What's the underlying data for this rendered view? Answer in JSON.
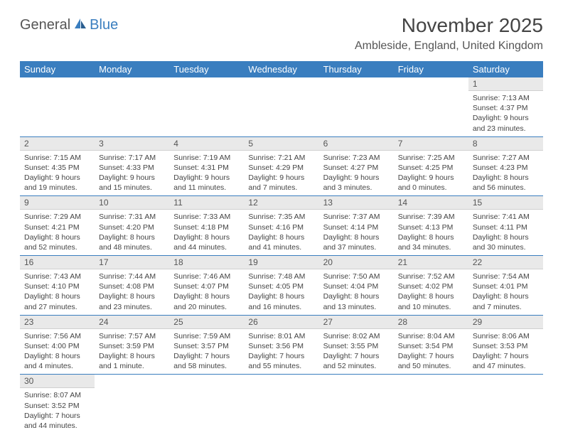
{
  "logo": {
    "part1": "General",
    "part2": "Blue"
  },
  "title": "November 2025",
  "location": "Ambleside, England, United Kingdom",
  "colors": {
    "header_bg": "#3a7ebf",
    "header_fg": "#ffffff",
    "daynum_bg": "#e9e9e9",
    "row_border": "#3a7ebf",
    "text": "#444444",
    "logo_gray": "#555555",
    "logo_blue": "#3a7ebf"
  },
  "weekdays": [
    "Sunday",
    "Monday",
    "Tuesday",
    "Wednesday",
    "Thursday",
    "Friday",
    "Saturday"
  ],
  "weeks": [
    [
      {
        "n": "",
        "lines": []
      },
      {
        "n": "",
        "lines": []
      },
      {
        "n": "",
        "lines": []
      },
      {
        "n": "",
        "lines": []
      },
      {
        "n": "",
        "lines": []
      },
      {
        "n": "",
        "lines": []
      },
      {
        "n": "1",
        "lines": [
          "Sunrise: 7:13 AM",
          "Sunset: 4:37 PM",
          "Daylight: 9 hours and 23 minutes."
        ]
      }
    ],
    [
      {
        "n": "2",
        "lines": [
          "Sunrise: 7:15 AM",
          "Sunset: 4:35 PM",
          "Daylight: 9 hours and 19 minutes."
        ]
      },
      {
        "n": "3",
        "lines": [
          "Sunrise: 7:17 AM",
          "Sunset: 4:33 PM",
          "Daylight: 9 hours and 15 minutes."
        ]
      },
      {
        "n": "4",
        "lines": [
          "Sunrise: 7:19 AM",
          "Sunset: 4:31 PM",
          "Daylight: 9 hours and 11 minutes."
        ]
      },
      {
        "n": "5",
        "lines": [
          "Sunrise: 7:21 AM",
          "Sunset: 4:29 PM",
          "Daylight: 9 hours and 7 minutes."
        ]
      },
      {
        "n": "6",
        "lines": [
          "Sunrise: 7:23 AM",
          "Sunset: 4:27 PM",
          "Daylight: 9 hours and 3 minutes."
        ]
      },
      {
        "n": "7",
        "lines": [
          "Sunrise: 7:25 AM",
          "Sunset: 4:25 PM",
          "Daylight: 9 hours and 0 minutes."
        ]
      },
      {
        "n": "8",
        "lines": [
          "Sunrise: 7:27 AM",
          "Sunset: 4:23 PM",
          "Daylight: 8 hours and 56 minutes."
        ]
      }
    ],
    [
      {
        "n": "9",
        "lines": [
          "Sunrise: 7:29 AM",
          "Sunset: 4:21 PM",
          "Daylight: 8 hours and 52 minutes."
        ]
      },
      {
        "n": "10",
        "lines": [
          "Sunrise: 7:31 AM",
          "Sunset: 4:20 PM",
          "Daylight: 8 hours and 48 minutes."
        ]
      },
      {
        "n": "11",
        "lines": [
          "Sunrise: 7:33 AM",
          "Sunset: 4:18 PM",
          "Daylight: 8 hours and 44 minutes."
        ]
      },
      {
        "n": "12",
        "lines": [
          "Sunrise: 7:35 AM",
          "Sunset: 4:16 PM",
          "Daylight: 8 hours and 41 minutes."
        ]
      },
      {
        "n": "13",
        "lines": [
          "Sunrise: 7:37 AM",
          "Sunset: 4:14 PM",
          "Daylight: 8 hours and 37 minutes."
        ]
      },
      {
        "n": "14",
        "lines": [
          "Sunrise: 7:39 AM",
          "Sunset: 4:13 PM",
          "Daylight: 8 hours and 34 minutes."
        ]
      },
      {
        "n": "15",
        "lines": [
          "Sunrise: 7:41 AM",
          "Sunset: 4:11 PM",
          "Daylight: 8 hours and 30 minutes."
        ]
      }
    ],
    [
      {
        "n": "16",
        "lines": [
          "Sunrise: 7:43 AM",
          "Sunset: 4:10 PM",
          "Daylight: 8 hours and 27 minutes."
        ]
      },
      {
        "n": "17",
        "lines": [
          "Sunrise: 7:44 AM",
          "Sunset: 4:08 PM",
          "Daylight: 8 hours and 23 minutes."
        ]
      },
      {
        "n": "18",
        "lines": [
          "Sunrise: 7:46 AM",
          "Sunset: 4:07 PM",
          "Daylight: 8 hours and 20 minutes."
        ]
      },
      {
        "n": "19",
        "lines": [
          "Sunrise: 7:48 AM",
          "Sunset: 4:05 PM",
          "Daylight: 8 hours and 16 minutes."
        ]
      },
      {
        "n": "20",
        "lines": [
          "Sunrise: 7:50 AM",
          "Sunset: 4:04 PM",
          "Daylight: 8 hours and 13 minutes."
        ]
      },
      {
        "n": "21",
        "lines": [
          "Sunrise: 7:52 AM",
          "Sunset: 4:02 PM",
          "Daylight: 8 hours and 10 minutes."
        ]
      },
      {
        "n": "22",
        "lines": [
          "Sunrise: 7:54 AM",
          "Sunset: 4:01 PM",
          "Daylight: 8 hours and 7 minutes."
        ]
      }
    ],
    [
      {
        "n": "23",
        "lines": [
          "Sunrise: 7:56 AM",
          "Sunset: 4:00 PM",
          "Daylight: 8 hours and 4 minutes."
        ]
      },
      {
        "n": "24",
        "lines": [
          "Sunrise: 7:57 AM",
          "Sunset: 3:59 PM",
          "Daylight: 8 hours and 1 minute."
        ]
      },
      {
        "n": "25",
        "lines": [
          "Sunrise: 7:59 AM",
          "Sunset: 3:57 PM",
          "Daylight: 7 hours and 58 minutes."
        ]
      },
      {
        "n": "26",
        "lines": [
          "Sunrise: 8:01 AM",
          "Sunset: 3:56 PM",
          "Daylight: 7 hours and 55 minutes."
        ]
      },
      {
        "n": "27",
        "lines": [
          "Sunrise: 8:02 AM",
          "Sunset: 3:55 PM",
          "Daylight: 7 hours and 52 minutes."
        ]
      },
      {
        "n": "28",
        "lines": [
          "Sunrise: 8:04 AM",
          "Sunset: 3:54 PM",
          "Daylight: 7 hours and 50 minutes."
        ]
      },
      {
        "n": "29",
        "lines": [
          "Sunrise: 8:06 AM",
          "Sunset: 3:53 PM",
          "Daylight: 7 hours and 47 minutes."
        ]
      }
    ],
    [
      {
        "n": "30",
        "lines": [
          "Sunrise: 8:07 AM",
          "Sunset: 3:52 PM",
          "Daylight: 7 hours and 44 minutes."
        ]
      },
      {
        "n": "",
        "lines": []
      },
      {
        "n": "",
        "lines": []
      },
      {
        "n": "",
        "lines": []
      },
      {
        "n": "",
        "lines": []
      },
      {
        "n": "",
        "lines": []
      },
      {
        "n": "",
        "lines": []
      }
    ]
  ]
}
